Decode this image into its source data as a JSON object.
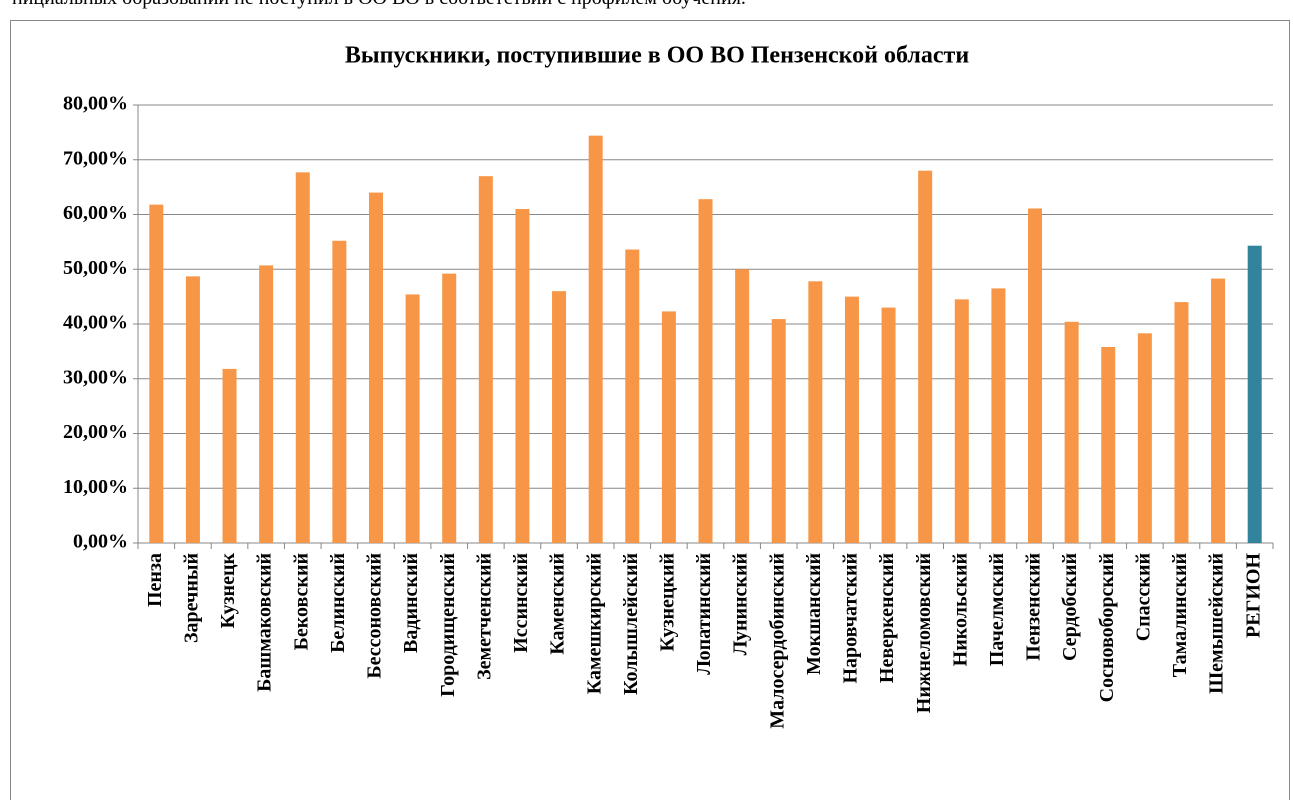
{
  "header_text": "нициальных образований не поступил в ОО ВО в соответствии с профилем обучения.",
  "chart_data": {
    "type": "bar",
    "title": "Выпускники, поступившие в ОО ВО Пензенской области",
    "categories": [
      "Пенза",
      "Заречный",
      "Кузнецк",
      "Башмаковский",
      "Бековский",
      "Белинский",
      "Бессоновский",
      "Вадинский",
      "Городищенский",
      "Земетченский",
      "Иссинский",
      "Каменский",
      "Камешкирский",
      "Колышлейский",
      "Кузнецкий",
      "Лопатинский",
      "Лунинский",
      "Малосердобинский",
      "Мокшанский",
      "Наровчатский",
      "Неверкенский",
      "Нижнеломовский",
      "Никольский",
      "Пачелмский",
      "Пензенский",
      "Сердобский",
      "Сосновоборский",
      "Спасский",
      "Тамалинский",
      "Шемышейский",
      "РЕГИОН"
    ],
    "values": [
      61.8,
      48.7,
      31.8,
      50.7,
      67.7,
      55.2,
      64,
      45.4,
      49.2,
      67,
      61,
      46,
      74.4,
      53.6,
      42.3,
      62.8,
      50,
      40.9,
      47.8,
      45,
      43,
      68,
      44.5,
      46.5,
      61.1,
      40.4,
      35.8,
      38.3,
      44,
      48.3,
      54.3
    ],
    "colors": [
      "#f79646",
      "#f79646",
      "#f79646",
      "#f79646",
      "#f79646",
      "#f79646",
      "#f79646",
      "#f79646",
      "#f79646",
      "#f79646",
      "#f79646",
      "#f79646",
      "#f79646",
      "#f79646",
      "#f79646",
      "#f79646",
      "#f79646",
      "#f79646",
      "#f79646",
      "#f79646",
      "#f79646",
      "#f79646",
      "#f79646",
      "#f79646",
      "#f79646",
      "#f79646",
      "#f79646",
      "#f79646",
      "#f79646",
      "#f79646",
      "#31849b"
    ],
    "ylim": [
      0,
      80
    ],
    "yticks": [
      {
        "value": 0,
        "label": "0,00%"
      },
      {
        "value": 10,
        "label": "10,00%"
      },
      {
        "value": 20,
        "label": "20,00%"
      },
      {
        "value": 30,
        "label": "30,00%"
      },
      {
        "value": 40,
        "label": "40,00%"
      },
      {
        "value": 50,
        "label": "50,00%"
      },
      {
        "value": 60,
        "label": "60,00%"
      },
      {
        "value": 70,
        "label": "70,00%"
      },
      {
        "value": 80,
        "label": "80,00%"
      }
    ],
    "grid": true
  }
}
